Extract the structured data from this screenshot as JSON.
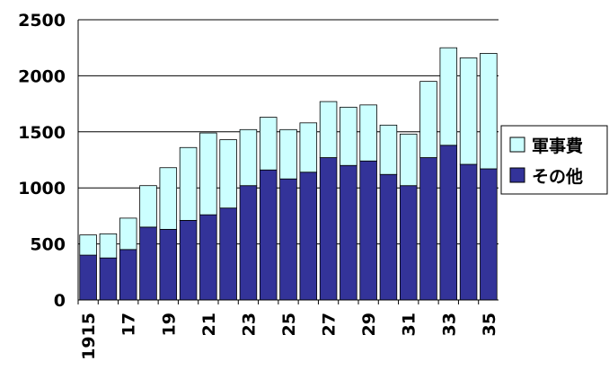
{
  "chart_data": {
    "type": "stacked-bar",
    "categories": [
      "1915",
      null,
      "17",
      null,
      "19",
      null,
      "21",
      null,
      "23",
      null,
      "25",
      null,
      "27",
      null,
      "29",
      null,
      "31",
      null,
      "33",
      null,
      "35"
    ],
    "series": [
      {
        "name": "その他",
        "color": "#333399",
        "values": [
          400,
          375,
          450,
          650,
          630,
          710,
          760,
          820,
          1020,
          1160,
          1080,
          1140,
          1270,
          1200,
          1240,
          1120,
          1020,
          1270,
          1380,
          1210,
          1170
        ]
      },
      {
        "name": "軍事費",
        "color": "#ccffff",
        "values": [
          180,
          215,
          280,
          370,
          550,
          650,
          730,
          610,
          500,
          470,
          440,
          440,
          500,
          520,
          500,
          440,
          460,
          680,
          870,
          950,
          1030
        ]
      }
    ],
    "ylim": [
      0,
      2500
    ],
    "yticks": [
      0,
      500,
      1000,
      1500,
      2000,
      2500
    ],
    "grid": true,
    "legend": "right"
  }
}
